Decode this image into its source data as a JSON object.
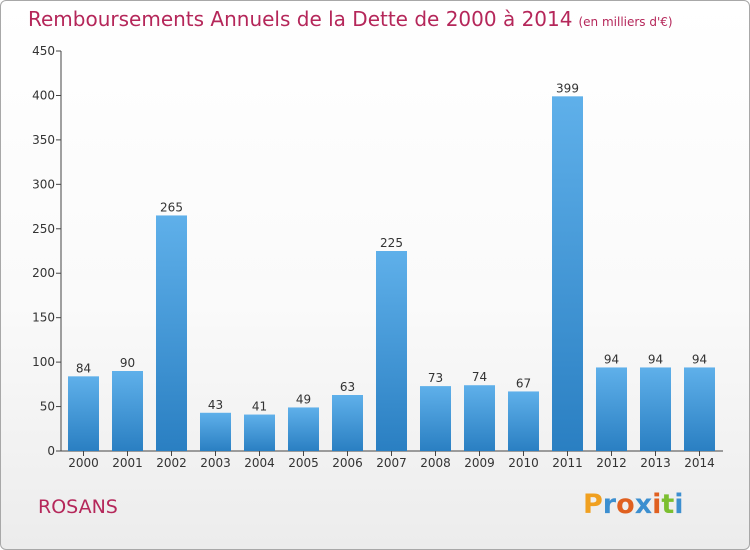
{
  "header": {
    "title": "Remboursements Annuels de la Dette de 2000 à 2014",
    "unit": "(en milliers d'€)"
  },
  "footer": {
    "commune": "ROSANS",
    "logo_text": "Proxiti"
  },
  "colors": {
    "title": "#b5275a",
    "bar_top": "#5fb0ea",
    "bar_bottom": "#2a7fc2",
    "axis": "#444444",
    "logo_letters": [
      "#f0a020",
      "#3c8fd0",
      "#e06020",
      "#3c8fd0",
      "#e06020",
      "#7cbf30",
      "#3c8fd0"
    ]
  },
  "chart_data": {
    "type": "bar",
    "categories": [
      "2000",
      "2001",
      "2002",
      "2003",
      "2004",
      "2005",
      "2006",
      "2007",
      "2008",
      "2009",
      "2010",
      "2011",
      "2012",
      "2013",
      "2014"
    ],
    "values": [
      84,
      90,
      265,
      43,
      41,
      49,
      63,
      225,
      73,
      74,
      67,
      399,
      94,
      94,
      94
    ],
    "ylim": [
      0,
      450
    ],
    "yticks": [
      0,
      50,
      100,
      150,
      200,
      250,
      300,
      350,
      400,
      450
    ],
    "title": "Remboursements Annuels de la Dette de 2000 à 2014",
    "xlabel": "",
    "ylabel": "",
    "grid": false,
    "data_labels": true
  }
}
